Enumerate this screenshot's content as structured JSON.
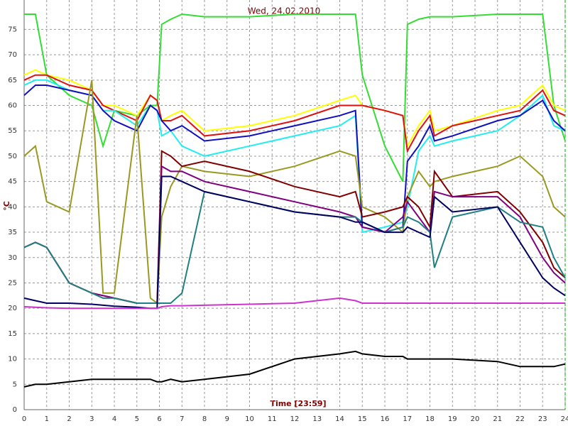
{
  "chart_data": {
    "type": "line",
    "title": "Wed, 24.02.2010",
    "x_label": "Time [23:59]",
    "y_label": "°C",
    "x": [
      0,
      0.5,
      1,
      2,
      3,
      3.5,
      4,
      5,
      5.6,
      5.9,
      6.1,
      6.5,
      7,
      8,
      10,
      12,
      14,
      14.7,
      15,
      16,
      16.8,
      17,
      17.5,
      18,
      18.2,
      19,
      21,
      22,
      23,
      23.5,
      24
    ],
    "xlim": [
      0,
      24
    ],
    "xticks": [
      0,
      1,
      2,
      3,
      4,
      5,
      6,
      7,
      8,
      9,
      10,
      11,
      12,
      13,
      14,
      15,
      16,
      17,
      18,
      19,
      20,
      21,
      22,
      23,
      24
    ],
    "ylim": [
      0,
      80.8
    ],
    "yticks": [
      0,
      5,
      10,
      15,
      20,
      25,
      30,
      35,
      40,
      45,
      50,
      55,
      60,
      65,
      70,
      75
    ],
    "grid": true,
    "series": [
      {
        "color": "#33dd33",
        "values": [
          78,
          78,
          66,
          62,
          60,
          52,
          59,
          58,
          60,
          60,
          76,
          77,
          78,
          77.5,
          77.5,
          78,
          78,
          78,
          66,
          52,
          45,
          76,
          77,
          77.5,
          77.5,
          77.5,
          78,
          78,
          78,
          60,
          53
        ]
      },
      {
        "color": "#ffff00",
        "values": [
          66,
          67,
          66,
          65,
          63,
          60,
          60,
          58,
          62,
          61,
          57,
          58,
          59,
          55,
          56,
          58,
          61,
          62,
          60,
          59,
          58,
          52,
          56,
          59,
          55,
          56,
          59,
          60,
          64,
          60,
          59
        ]
      },
      {
        "color": "#dd1111",
        "values": [
          65,
          66,
          66,
          64,
          63,
          60,
          59,
          57,
          62,
          61,
          57,
          57,
          58,
          54,
          55,
          57,
          60,
          60,
          60,
          59,
          58,
          51,
          55,
          58,
          54,
          56,
          58,
          59,
          63,
          59,
          58
        ]
      },
      {
        "color": "#22eeee",
        "values": [
          64,
          65,
          65,
          63,
          62,
          59,
          59,
          56,
          60,
          59,
          54,
          55,
          52,
          50,
          52,
          54,
          56,
          58,
          35,
          36,
          37,
          40,
          51,
          54,
          52,
          53,
          55,
          58,
          62,
          56,
          55
        ]
      },
      {
        "color": "#1010c0",
        "values": [
          62,
          64,
          64,
          63,
          62,
          59,
          57,
          55,
          60,
          59,
          57,
          55,
          56,
          53,
          54,
          56,
          58,
          59,
          36,
          35,
          36,
          49,
          52,
          56,
          53,
          54,
          57,
          58,
          61,
          57,
          55
        ]
      },
      {
        "color": "#999922",
        "values": [
          50,
          52,
          41,
          39,
          65,
          23,
          23,
          58,
          22,
          21,
          38,
          44,
          48,
          47,
          46,
          48,
          51,
          50,
          40,
          38,
          35,
          42,
          47,
          44,
          45,
          46,
          48,
          50,
          46,
          40,
          38
        ]
      },
      {
        "color": "#800000",
        "values": [
          32,
          33,
          32,
          25,
          23,
          22.5,
          22,
          21,
          21,
          21,
          51,
          50,
          48,
          49,
          47,
          44,
          42,
          43,
          38,
          39,
          40,
          42,
          40,
          36,
          47,
          42,
          43,
          39,
          33,
          28,
          26
        ]
      },
      {
        "color": "#800080",
        "values": [
          32,
          33,
          32,
          25,
          23,
          22.5,
          22,
          21,
          21,
          21,
          48,
          47,
          47,
          45,
          43,
          41,
          39,
          38,
          36,
          35,
          38,
          41,
          38,
          35,
          43,
          42,
          42,
          38,
          30,
          27,
          25
        ]
      },
      {
        "color": "#208080",
        "values": [
          32,
          33,
          32,
          25,
          23,
          22,
          22,
          21,
          21,
          21,
          21,
          21,
          23,
          43,
          41,
          39,
          38,
          38,
          37,
          35,
          36,
          38,
          37,
          35,
          28,
          38,
          40,
          37,
          36,
          30,
          26
        ]
      },
      {
        "color": "#000060",
        "values": [
          22,
          21.5,
          21,
          21,
          20.8,
          20.6,
          20.4,
          20.2,
          20,
          20,
          46,
          46,
          45,
          43,
          41,
          39,
          38,
          37,
          37,
          35,
          35,
          36,
          35,
          34,
          42,
          39,
          40,
          33,
          26,
          24,
          22.5
        ]
      },
      {
        "color": "#cc33cc",
        "values": [
          20.3,
          20.2,
          20.1,
          20,
          20,
          20,
          20,
          20,
          20,
          20,
          20.3,
          20.5,
          20.5,
          20.6,
          20.8,
          21,
          22,
          21.5,
          21,
          21,
          21,
          21,
          21,
          21,
          21,
          21,
          21,
          21,
          21,
          21,
          21
        ]
      },
      {
        "color": "#000000",
        "values": [
          4.5,
          5,
          5,
          5.5,
          6,
          6,
          6,
          6,
          6,
          5.5,
          5.5,
          6,
          5.5,
          6,
          7,
          10,
          11,
          11.5,
          11,
          10.5,
          10.5,
          10,
          10,
          10,
          10,
          10,
          9.5,
          8.5,
          8.5,
          8.5,
          9
        ]
      }
    ]
  }
}
